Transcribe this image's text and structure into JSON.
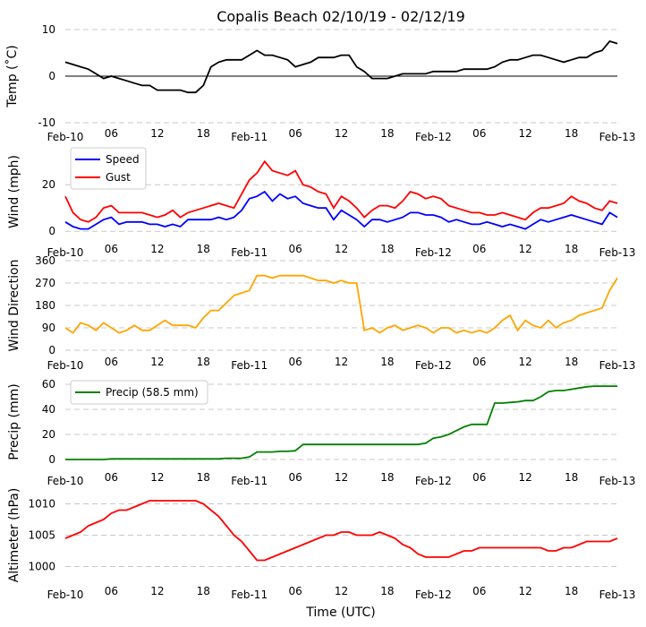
{
  "chart_data": [
    {
      "type": "line",
      "title": "Copalis Beach 02/10/19 - 02/12/19",
      "ylabel": "Temp ($^\\circ$C)",
      "ylabel_display": "Temp (˚C)",
      "ylim": [
        -10,
        10
      ],
      "yticks": [
        -10,
        0,
        10
      ],
      "grid": true,
      "zero_line": true,
      "series": [
        {
          "color": "#000000",
          "values": [
            3,
            2.5,
            2,
            1.5,
            0.5,
            -0.5,
            0,
            -0.5,
            -1,
            -1.5,
            -2,
            -2,
            -3,
            -3,
            -3,
            -3,
            -3.5,
            -3.5,
            -2,
            2,
            3,
            3.5,
            3.5,
            3.5,
            4.5,
            5.5,
            4.5,
            4.5,
            4,
            3.5,
            2,
            2.5,
            3,
            4,
            4,
            4,
            4.5,
            4.5,
            2,
            1,
            -0.5,
            -0.5,
            -0.5,
            0,
            0.5,
            0.5,
            0.5,
            0.5,
            1,
            1,
            1,
            1,
            1.5,
            1.5,
            1.5,
            1.5,
            2,
            3,
            3.5,
            3.5,
            4,
            4.5,
            4.5,
            4,
            3.5,
            3,
            3.5,
            4,
            4,
            5,
            5.5,
            7.5,
            7
          ]
        }
      ]
    },
    {
      "type": "line",
      "ylabel": "Wind (mph)",
      "ylim": [
        -3,
        37
      ],
      "yticks": [
        0,
        20
      ],
      "grid": true,
      "legend": "top-left",
      "series": [
        {
          "name": "Speed",
          "color": "#0000ff",
          "values": [
            4,
            2,
            1,
            1,
            3,
            5,
            6,
            3,
            4,
            4,
            4,
            3,
            3,
            2,
            3,
            2,
            5,
            5,
            5,
            5,
            6,
            5,
            6,
            9,
            14,
            15,
            17,
            13,
            16,
            14,
            15,
            12,
            11,
            10,
            10,
            5,
            9,
            7,
            5,
            2,
            5,
            5,
            4,
            5,
            6,
            8,
            8,
            7,
            7,
            6,
            4,
            5,
            4,
            3,
            3,
            4,
            3,
            2,
            3,
            2,
            1,
            3,
            5,
            4,
            5,
            6,
            7,
            6,
            5,
            4,
            3,
            8,
            6
          ]
        },
        {
          "name": "Gust",
          "color": "#ff0000",
          "values": [
            15,
            8,
            5,
            4,
            6,
            10,
            11,
            8,
            8,
            8,
            8,
            7,
            6,
            7,
            9,
            6,
            8,
            9,
            10,
            11,
            12,
            11,
            10,
            16,
            22,
            25,
            30,
            26,
            25,
            24,
            26,
            20,
            19,
            17,
            16,
            10,
            15,
            13,
            10,
            6,
            9,
            11,
            11,
            10,
            13,
            17,
            16,
            14,
            15,
            14,
            11,
            10,
            9,
            8,
            8,
            7,
            7,
            8,
            7,
            6,
            5,
            8,
            10,
            10,
            11,
            12,
            15,
            13,
            12,
            10,
            9,
            13,
            12
          ]
        }
      ]
    },
    {
      "type": "line",
      "ylabel": "Wind Direction",
      "ylim": [
        0,
        360
      ],
      "yticks": [
        0,
        90,
        180,
        270,
        360
      ],
      "grid": true,
      "series": [
        {
          "color": "#ffa500",
          "values": [
            90,
            70,
            110,
            100,
            80,
            110,
            90,
            70,
            80,
            100,
            80,
            80,
            100,
            120,
            100,
            100,
            100,
            90,
            130,
            160,
            160,
            190,
            220,
            230,
            240,
            300,
            300,
            290,
            300,
            300,
            300,
            300,
            290,
            280,
            280,
            270,
            280,
            270,
            270,
            80,
            90,
            70,
            90,
            100,
            80,
            90,
            100,
            90,
            70,
            90,
            90,
            70,
            80,
            70,
            80,
            70,
            90,
            120,
            140,
            80,
            120,
            100,
            90,
            120,
            90,
            110,
            120,
            140,
            150,
            160,
            170,
            240,
            290
          ]
        }
      ]
    },
    {
      "type": "line",
      "ylabel": "Precip (mm)",
      "ylim": [
        -5,
        65
      ],
      "yticks": [
        0,
        20,
        40,
        60
      ],
      "grid": true,
      "legend": "top-left",
      "series": [
        {
          "name": "Precip (58.5 mm)",
          "color": "#008000",
          "values": [
            0,
            0,
            0,
            0,
            0,
            0,
            0.5,
            0.5,
            0.5,
            0.5,
            0.5,
            0.5,
            0.5,
            0.5,
            0.5,
            0.5,
            0.5,
            0.5,
            0.5,
            0.5,
            0.5,
            1,
            1,
            1,
            2,
            6,
            6,
            6,
            6.5,
            6.5,
            7,
            12,
            12,
            12,
            12,
            12,
            12,
            12,
            12,
            12,
            12,
            12,
            12,
            12,
            12,
            12,
            12,
            13,
            17,
            18,
            20,
            23,
            26,
            28,
            28,
            28,
            45,
            45,
            45.5,
            46,
            47,
            47,
            50,
            54,
            55,
            55,
            56,
            57,
            58,
            58.5,
            58.5,
            58.5,
            58.5
          ]
        }
      ]
    },
    {
      "type": "line",
      "ylabel": "Altimeter (hPa)",
      "xlabel": "Time (UTC)",
      "ylim": [
        997.5,
        1012.5
      ],
      "yticks": [
        1000,
        1005,
        1010
      ],
      "grid": true,
      "series": [
        {
          "color": "#ff0000",
          "values": [
            1004.5,
            1005,
            1005.5,
            1006.5,
            1007,
            1007.5,
            1008.5,
            1009,
            1009,
            1009.5,
            1010,
            1010.5,
            1010.5,
            1010.5,
            1010.5,
            1010.5,
            1010.5,
            1010.5,
            1010,
            1009,
            1008,
            1006.5,
            1005,
            1004,
            1002.5,
            1001,
            1001,
            1001.5,
            1002,
            1002.5,
            1003,
            1003.5,
            1004,
            1004.5,
            1005,
            1005,
            1005.5,
            1005.5,
            1005,
            1005,
            1005,
            1005.5,
            1005,
            1004.5,
            1003.5,
            1003,
            1002,
            1001.5,
            1001.5,
            1001.5,
            1001.5,
            1002,
            1002.5,
            1002.5,
            1003,
            1003,
            1003,
            1003,
            1003,
            1003,
            1003,
            1003,
            1003,
            1002.5,
            1002.5,
            1003,
            1003,
            1003.5,
            1004,
            1004,
            1004,
            1004,
            1004.5
          ]
        }
      ]
    }
  ],
  "x_range": [
    "2019-02-10 00:00",
    "2019-02-13 00:00"
  ],
  "x_interval": "hourly",
  "xtick_labels": [
    "Feb-10",
    "06",
    "12",
    "18",
    "Feb-11",
    "06",
    "12",
    "18",
    "Feb-12",
    "06",
    "12",
    "18",
    "Feb-13"
  ]
}
